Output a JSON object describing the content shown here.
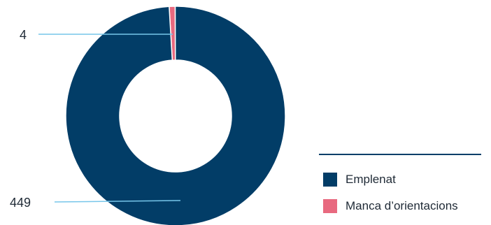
{
  "chart_data": {
    "type": "pie",
    "title": "",
    "donut": true,
    "categories": [
      "Emplenat",
      "Manca d’orientacions"
    ],
    "values": [
      449,
      4
    ],
    "data_labels": [
      "449",
      "4"
    ],
    "colors": [
      "#023d67",
      "#e8697f"
    ],
    "legend": {
      "placement": "bottom-right",
      "entries": [
        "Emplenat",
        "Manca d’orientacions"
      ]
    },
    "leader_line_color": "#77c6ea"
  }
}
